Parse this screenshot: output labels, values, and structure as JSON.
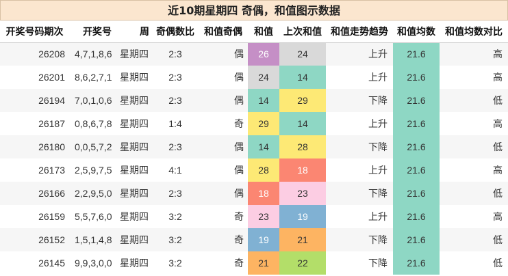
{
  "title": "近10期星期四 奇偶，和值图示数据",
  "headers": [
    "开奖号码期次",
    "开奖号",
    "周",
    "奇偶数比",
    "和值奇偶",
    "和值",
    "上次和值",
    "和值走势趋势",
    "和值均数",
    "和值均数对比"
  ],
  "rows": [
    {
      "issue": "26208",
      "numbers": "4,7,1,8,6",
      "week": "星期四",
      "ratio": "2:3",
      "parity": "偶",
      "sum": "26",
      "sum_bg": "#c58fc6",
      "sum_fg": "#ffffff",
      "prev": "24",
      "prev_bg": "#d9d9d9",
      "prev_fg": "#333333",
      "trend": "上升",
      "avg": "21.6",
      "cmp": "高"
    },
    {
      "issue": "26201",
      "numbers": "8,6,2,7,1",
      "week": "星期四",
      "ratio": "2:3",
      "parity": "偶",
      "sum": "24",
      "sum_bg": "#d9d9d9",
      "sum_fg": "#333333",
      "prev": "14",
      "prev_bg": "#8ed7c4",
      "prev_fg": "#333333",
      "trend": "上升",
      "avg": "21.6",
      "cmp": "高"
    },
    {
      "issue": "26194",
      "numbers": "7,0,1,0,6",
      "week": "星期四",
      "ratio": "2:3",
      "parity": "偶",
      "sum": "14",
      "sum_bg": "#8ed7c4",
      "sum_fg": "#333333",
      "prev": "29",
      "prev_bg": "#fde975",
      "prev_fg": "#333333",
      "trend": "下降",
      "avg": "21.6",
      "cmp": "低"
    },
    {
      "issue": "26187",
      "numbers": "0,8,6,7,8",
      "week": "星期四",
      "ratio": "1:4",
      "parity": "奇",
      "sum": "29",
      "sum_bg": "#fde975",
      "sum_fg": "#333333",
      "prev": "14",
      "prev_bg": "#8ed7c4",
      "prev_fg": "#333333",
      "trend": "上升",
      "avg": "21.6",
      "cmp": "高"
    },
    {
      "issue": "26180",
      "numbers": "0,0,5,7,2",
      "week": "星期四",
      "ratio": "2:3",
      "parity": "偶",
      "sum": "14",
      "sum_bg": "#8ed7c4",
      "sum_fg": "#333333",
      "prev": "28",
      "prev_bg": "#fde975",
      "prev_fg": "#333333",
      "trend": "下降",
      "avg": "21.6",
      "cmp": "低"
    },
    {
      "issue": "26173",
      "numbers": "2,5,9,7,5",
      "week": "星期四",
      "ratio": "4:1",
      "parity": "偶",
      "sum": "28",
      "sum_bg": "#fde975",
      "sum_fg": "#333333",
      "prev": "18",
      "prev_bg": "#fb8672",
      "prev_fg": "#ffffff",
      "trend": "上升",
      "avg": "21.6",
      "cmp": "高"
    },
    {
      "issue": "26166",
      "numbers": "2,2,9,5,0",
      "week": "星期四",
      "ratio": "2:3",
      "parity": "偶",
      "sum": "18",
      "sum_bg": "#fb8672",
      "sum_fg": "#ffffff",
      "prev": "23",
      "prev_bg": "#fccde3",
      "prev_fg": "#333333",
      "trend": "下降",
      "avg": "21.6",
      "cmp": "低"
    },
    {
      "issue": "26159",
      "numbers": "5,5,7,6,0",
      "week": "星期四",
      "ratio": "3:2",
      "parity": "奇",
      "sum": "23",
      "sum_bg": "#fccde3",
      "sum_fg": "#333333",
      "prev": "19",
      "prev_bg": "#80b1d3",
      "prev_fg": "#ffffff",
      "trend": "上升",
      "avg": "21.6",
      "cmp": "高"
    },
    {
      "issue": "26152",
      "numbers": "1,5,1,4,8",
      "week": "星期四",
      "ratio": "3:2",
      "parity": "奇",
      "sum": "19",
      "sum_bg": "#80b1d3",
      "sum_fg": "#ffffff",
      "prev": "21",
      "prev_bg": "#fdb462",
      "prev_fg": "#333333",
      "trend": "下降",
      "avg": "21.6",
      "cmp": "低"
    },
    {
      "issue": "26145",
      "numbers": "9,9,3,0,0",
      "week": "星期四",
      "ratio": "3:2",
      "parity": "奇",
      "sum": "21",
      "sum_bg": "#fdb462",
      "sum_fg": "#333333",
      "prev": "22",
      "prev_bg": "#b3de69",
      "prev_fg": "#333333",
      "trend": "下降",
      "avg": "21.6",
      "cmp": "低"
    }
  ]
}
